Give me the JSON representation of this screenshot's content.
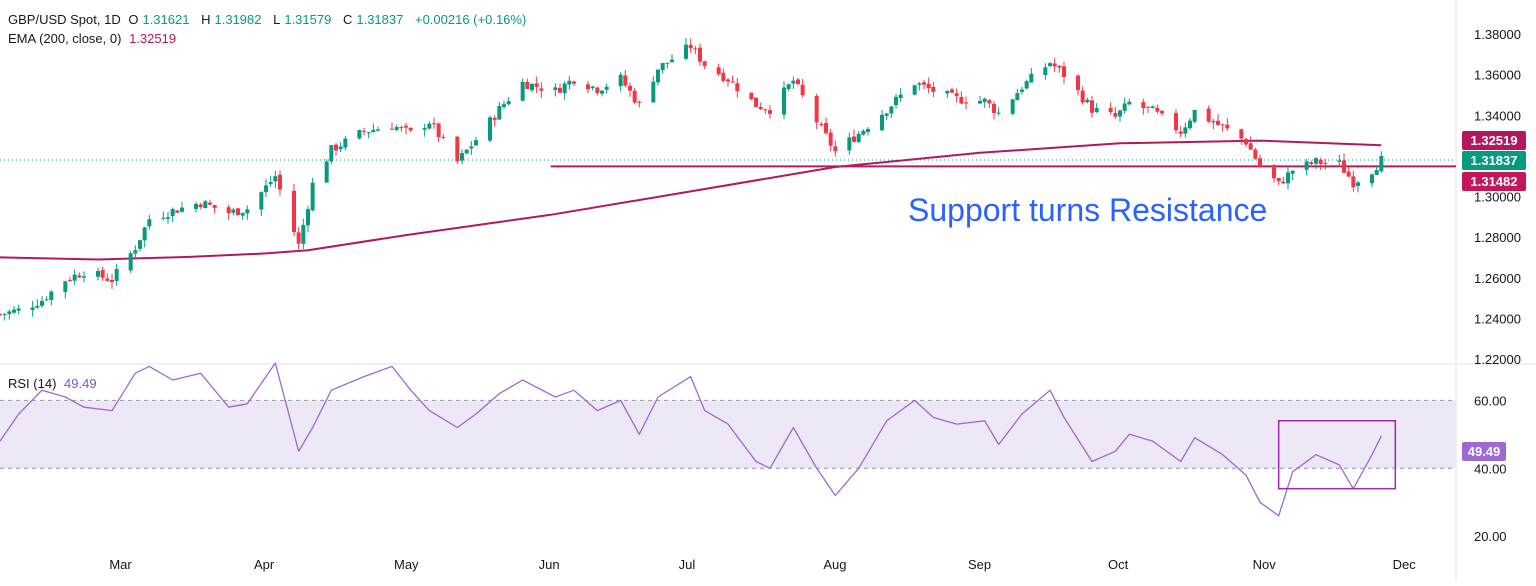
{
  "header": {
    "symbol": "GBP/USD Spot, 1D",
    "open_label": "O",
    "open": "1.31621",
    "high_label": "H",
    "high": "1.31982",
    "low_label": "L",
    "low": "1.31579",
    "close_label": "C",
    "close": "1.31837",
    "change": "+0.00216 (+0.16%)",
    "ema_label": "EMA (200, close, 0)",
    "ema_value": "1.32519",
    "rsi_label": "RSI (14)",
    "rsi_value": "49.49"
  },
  "price_tags": {
    "ema": "1.32519",
    "last": "1.31837",
    "support": "1.31482",
    "rsi": "49.49"
  },
  "colors": {
    "up": "#089981",
    "down": "#f23645",
    "ema": "#b2185e",
    "support_line": "#c2185b",
    "rsi": "#9c6ad2",
    "rsi_band": "#ede7f6",
    "annotation": "#2962ff",
    "box": "#9c27b0"
  },
  "annotation": "Support turns Resistance",
  "chart_data": [
    {
      "type": "candlestick",
      "title": "GBP/USD Spot, 1D",
      "x_ticks": [
        "Mar",
        "Apr",
        "May",
        "Jun",
        "Jul",
        "Aug",
        "Sep",
        "Oct",
        "Nov",
        "Dec"
      ],
      "y_ticks": [
        "1.38000",
        "1.36000",
        "1.34000",
        "1.32000",
        "1.30000",
        "1.28000",
        "1.26000",
        "1.24000",
        "1.22000"
      ],
      "ylim": [
        1.22,
        1.38
      ],
      "x_range": [
        "2025-02-03",
        "2025-12-12"
      ],
      "close_series": [
        [
          "2025-02-03",
          1.242
        ],
        [
          "2025-02-07",
          1.244
        ],
        [
          "2025-02-12",
          1.249
        ],
        [
          "2025-02-17",
          1.259
        ],
        [
          "2025-02-21",
          1.263
        ],
        [
          "2025-02-27",
          1.259
        ],
        [
          "2025-03-04",
          1.275
        ],
        [
          "2025-03-07",
          1.289
        ],
        [
          "2025-03-12",
          1.293
        ],
        [
          "2025-03-18",
          1.297
        ],
        [
          "2025-03-24",
          1.292
        ],
        [
          "2025-03-28",
          1.294
        ],
        [
          "2025-04-03",
          1.31
        ],
        [
          "2025-04-08",
          1.276
        ],
        [
          "2025-04-11",
          1.306
        ],
        [
          "2025-04-15",
          1.323
        ],
        [
          "2025-04-22",
          1.332
        ],
        [
          "2025-04-28",
          1.335
        ],
        [
          "2025-05-02",
          1.331
        ],
        [
          "2025-05-06",
          1.337
        ],
        [
          "2025-05-12",
          1.317
        ],
        [
          "2025-05-16",
          1.328
        ],
        [
          "2025-05-21",
          1.343
        ],
        [
          "2025-05-26",
          1.356
        ],
        [
          "2025-06-02",
          1.352
        ],
        [
          "2025-06-06",
          1.358
        ],
        [
          "2025-06-11",
          1.353
        ],
        [
          "2025-06-16",
          1.358
        ],
        [
          "2025-06-20",
          1.345
        ],
        [
          "2025-06-24",
          1.363
        ],
        [
          "2025-07-01",
          1.374
        ],
        [
          "2025-07-04",
          1.365
        ],
        [
          "2025-07-09",
          1.358
        ],
        [
          "2025-07-15",
          1.345
        ],
        [
          "2025-07-18",
          1.343
        ],
        [
          "2025-07-23",
          1.357
        ],
        [
          "2025-07-28",
          1.337
        ],
        [
          "2025-08-01",
          1.322
        ],
        [
          "2025-08-06",
          1.331
        ],
        [
          "2025-08-12",
          1.343
        ],
        [
          "2025-08-18",
          1.356
        ],
        [
          "2025-08-22",
          1.352
        ],
        [
          "2025-08-27",
          1.348
        ],
        [
          "2025-09-02",
          1.347
        ],
        [
          "2025-09-05",
          1.341
        ],
        [
          "2025-09-10",
          1.354
        ],
        [
          "2025-09-16",
          1.366
        ],
        [
          "2025-09-19",
          1.36
        ],
        [
          "2025-09-25",
          1.343
        ],
        [
          "2025-09-30",
          1.339
        ],
        [
          "2025-10-03",
          1.346
        ],
        [
          "2025-10-08",
          1.342
        ],
        [
          "2025-10-14",
          1.332
        ],
        [
          "2025-10-17",
          1.342
        ],
        [
          "2025-10-23",
          1.334
        ],
        [
          "2025-10-28",
          1.327
        ],
        [
          "2025-10-31",
          1.315
        ],
        [
          "2025-11-04",
          1.306
        ],
        [
          "2025-11-07",
          1.313
        ],
        [
          "2025-11-12",
          1.317
        ],
        [
          "2025-11-17",
          1.316
        ],
        [
          "2025-11-20",
          1.307
        ],
        [
          "2025-11-24",
          1.313
        ],
        [
          "2025-11-26",
          1.318
        ]
      ],
      "ema_series": [
        [
          "2025-02-03",
          1.27
        ],
        [
          "2025-02-24",
          1.269
        ],
        [
          "2025-03-15",
          1.2702
        ],
        [
          "2025-04-01",
          1.272
        ],
        [
          "2025-04-10",
          1.2735
        ],
        [
          "2025-05-01",
          1.281
        ],
        [
          "2025-06-01",
          1.291
        ],
        [
          "2025-07-01",
          1.3025
        ],
        [
          "2025-08-01",
          1.3145
        ],
        [
          "2025-09-01",
          1.3215
        ],
        [
          "2025-10-01",
          1.3262
        ],
        [
          "2025-10-31",
          1.3275
        ],
        [
          "2025-11-26",
          1.3252
        ]
      ],
      "support_line": {
        "value": 1.31482,
        "from": "2025-06-01",
        "to": "2025-12-12"
      }
    },
    {
      "type": "line",
      "title": "RSI (14)",
      "y_ticks": [
        "60.00",
        "40.00",
        "20.00"
      ],
      "ylim": [
        18,
        66
      ],
      "band": [
        40,
        60
      ],
      "series": [
        [
          "2025-02-03",
          48
        ],
        [
          "2025-02-07",
          56
        ],
        [
          "2025-02-12",
          63
        ],
        [
          "2025-02-17",
          61
        ],
        [
          "2025-02-21",
          58
        ],
        [
          "2025-02-27",
          57
        ],
        [
          "2025-03-04",
          68
        ],
        [
          "2025-03-07",
          70
        ],
        [
          "2025-03-12",
          66
        ],
        [
          "2025-03-18",
          68
        ],
        [
          "2025-03-24",
          58
        ],
        [
          "2025-03-28",
          59
        ],
        [
          "2025-04-03",
          71
        ],
        [
          "2025-04-08",
          45
        ],
        [
          "2025-04-11",
          52
        ],
        [
          "2025-04-15",
          63
        ],
        [
          "2025-04-22",
          67
        ],
        [
          "2025-04-28",
          70
        ],
        [
          "2025-05-02",
          63
        ],
        [
          "2025-05-06",
          57
        ],
        [
          "2025-05-12",
          52
        ],
        [
          "2025-05-16",
          56
        ],
        [
          "2025-05-21",
          62
        ],
        [
          "2025-05-26",
          66
        ],
        [
          "2025-06-02",
          61
        ],
        [
          "2025-06-06",
          63
        ],
        [
          "2025-06-11",
          57
        ],
        [
          "2025-06-16",
          60
        ],
        [
          "2025-06-20",
          50
        ],
        [
          "2025-06-24",
          61
        ],
        [
          "2025-07-01",
          67
        ],
        [
          "2025-07-04",
          57
        ],
        [
          "2025-07-09",
          53
        ],
        [
          "2025-07-15",
          42
        ],
        [
          "2025-07-18",
          40
        ],
        [
          "2025-07-23",
          52
        ],
        [
          "2025-07-28",
          40
        ],
        [
          "2025-08-01",
          32
        ],
        [
          "2025-08-06",
          40
        ],
        [
          "2025-08-12",
          54
        ],
        [
          "2025-08-18",
          60
        ],
        [
          "2025-08-22",
          55
        ],
        [
          "2025-08-27",
          53
        ],
        [
          "2025-09-02",
          54
        ],
        [
          "2025-09-05",
          47
        ],
        [
          "2025-09-10",
          56
        ],
        [
          "2025-09-16",
          63
        ],
        [
          "2025-09-19",
          55
        ],
        [
          "2025-09-25",
          42
        ],
        [
          "2025-09-30",
          45
        ],
        [
          "2025-10-03",
          50
        ],
        [
          "2025-10-08",
          48
        ],
        [
          "2025-10-14",
          42
        ],
        [
          "2025-10-17",
          49
        ],
        [
          "2025-10-23",
          44
        ],
        [
          "2025-10-28",
          38
        ],
        [
          "2025-10-31",
          30
        ],
        [
          "2025-11-04",
          26
        ],
        [
          "2025-11-07",
          39
        ],
        [
          "2025-11-12",
          44
        ],
        [
          "2025-11-17",
          41
        ],
        [
          "2025-11-20",
          34
        ],
        [
          "2025-11-24",
          44
        ],
        [
          "2025-11-26",
          49.49
        ]
      ],
      "highlight_box": {
        "from": "2025-11-04",
        "to": "2025-11-29",
        "y_range": [
          34,
          54
        ]
      }
    }
  ]
}
